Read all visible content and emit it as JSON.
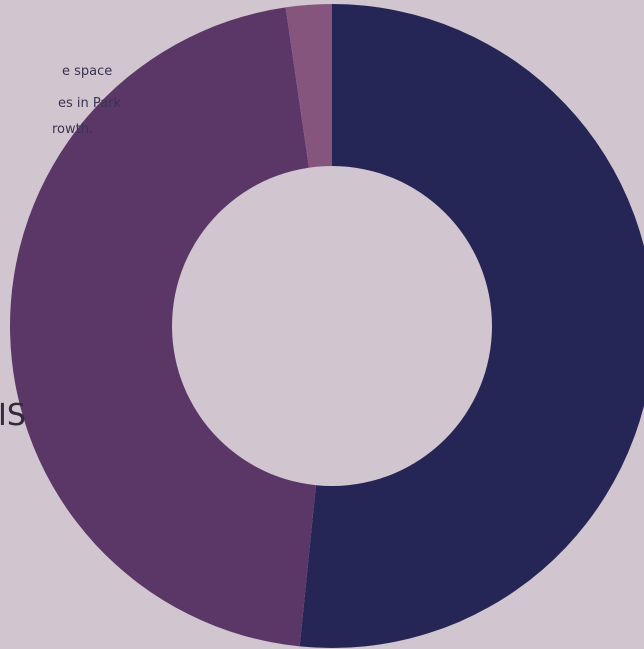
{
  "text_fragments": [
    "e space",
    "es in Park",
    "rowth.",
    "IS"
  ],
  "chart_data": {
    "type": "pie",
    "style": "donut",
    "start_angle_deg": 0,
    "direction": "clockwise",
    "slices": [
      {
        "value": 51.6,
        "color": "#262656"
      },
      {
        "value": 46.1,
        "color": "#5a3767"
      },
      {
        "value": 2.3,
        "color": "#85557e"
      }
    ]
  }
}
